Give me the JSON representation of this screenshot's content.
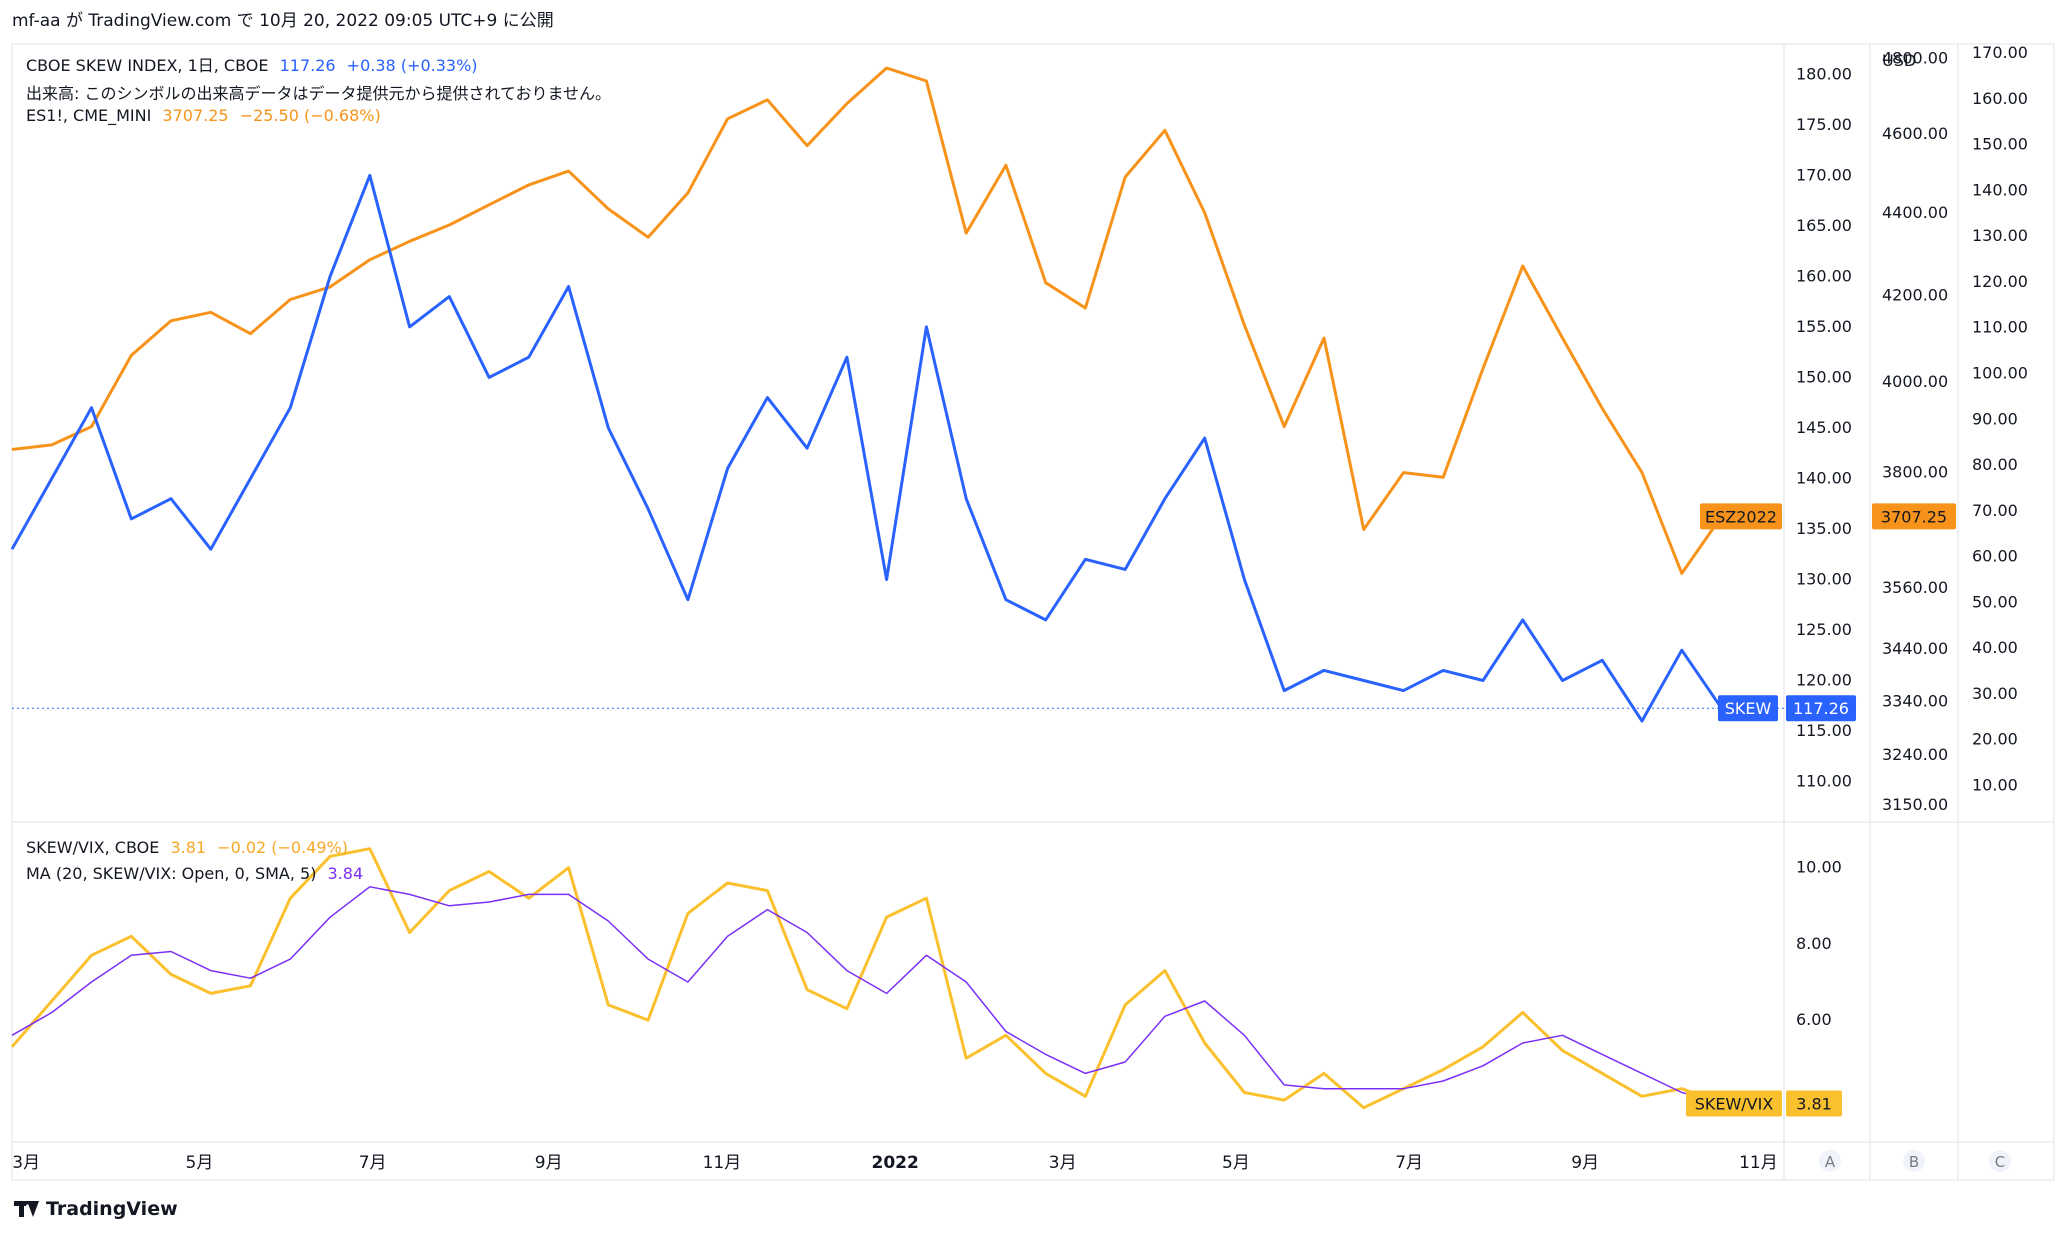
{
  "header": {
    "publish_text": "mf-aa が TradingView.com で 10月 20, 2022 09:05 UTC+9 に公開"
  },
  "legend": {
    "skew_name": "CBOE SKEW INDEX, 1日, CBOE",
    "skew_value": "117.26",
    "skew_change": "+0.38 (+0.33%)",
    "volume_note": "出来高: このシンボルの出来高データはデータ提供元から提供されておりません。",
    "es_name": "ES1!, CME_MINI",
    "es_value": "3707.25",
    "es_change": "−25.50 (−0.68%)",
    "ratio_name": "SKEW/VIX, CBOE",
    "ratio_value": "3.81",
    "ratio_change": "−0.02 (−0.49%)",
    "ma_name": "MA (20, SKEW/VIX: Open, 0, SMA, 5)",
    "ma_value": "3.84"
  },
  "colors": {
    "skew": "#2962ff",
    "es": "#f7931a",
    "ratio": "#fbc02d",
    "ma": "#7b2ff7",
    "grid": "#e0e3eb",
    "text": "#131722"
  },
  "brand": "TradingView",
  "axis_buttons": [
    "A",
    "B",
    "C"
  ],
  "chart_data": {
    "type": "line",
    "x_ticks": [
      "3月",
      "5月",
      "7月",
      "9月",
      "11月",
      "2022",
      "3月",
      "5月",
      "7月",
      "9月",
      "11月"
    ],
    "x_range": [
      "2021-02-24",
      "2022-11-10"
    ],
    "main_pane": {
      "skew_axis": {
        "ticks": [
          "180.00",
          "175.00",
          "170.00",
          "165.00",
          "160.00",
          "155.00",
          "150.00",
          "145.00",
          "140.00",
          "135.00",
          "130.00",
          "125.00",
          "120.00",
          "115.00",
          "110.00"
        ],
        "range": [
          106,
          183
        ]
      },
      "es_axis": {
        "unit": "USD",
        "ticks": [
          "4800.00",
          "4600.00",
          "4400.00",
          "4200.00",
          "4000.00",
          "3800.00",
          "3560.00",
          "3440.00",
          "3340.00",
          "3240.00",
          "3150.00"
        ],
        "range": [
          3120,
          4840
        ],
        "scale": "log"
      },
      "c_axis": {
        "ticks": [
          "170.00",
          "160.00",
          "150.00",
          "140.00",
          "130.00",
          "120.00",
          "110.00",
          "100.00",
          "90.00",
          "80.00",
          "70.00",
          "60.00",
          "50.00",
          "40.00",
          "30.00",
          "20.00",
          "10.00"
        ],
        "range": [
          2,
          172
        ]
      },
      "series": [
        {
          "name": "SKEW",
          "unit": "index",
          "last_label": "117.26",
          "points": [
            [
              "2021-02-24",
              133
            ],
            [
              "2021-03-10",
              140
            ],
            [
              "2021-03-24",
              147
            ],
            [
              "2021-04-07",
              136
            ],
            [
              "2021-04-21",
              138
            ],
            [
              "2021-05-05",
              133
            ],
            [
              "2021-05-19",
              140
            ],
            [
              "2021-06-02",
              147
            ],
            [
              "2021-06-16",
              160
            ],
            [
              "2021-06-30",
              170
            ],
            [
              "2021-07-14",
              155
            ],
            [
              "2021-07-28",
              158
            ],
            [
              "2021-08-11",
              150
            ],
            [
              "2021-08-25",
              152
            ],
            [
              "2021-09-08",
              159
            ],
            [
              "2021-09-22",
              145
            ],
            [
              "2021-10-06",
              137
            ],
            [
              "2021-10-20",
              128
            ],
            [
              "2021-11-03",
              141
            ],
            [
              "2021-11-17",
              148
            ],
            [
              "2021-12-01",
              143
            ],
            [
              "2021-12-15",
              152
            ],
            [
              "2021-12-29",
              130
            ],
            [
              "2022-01-12",
              155
            ],
            [
              "2022-01-26",
              138
            ],
            [
              "2022-02-09",
              128
            ],
            [
              "2022-02-23",
              126
            ],
            [
              "2022-03-09",
              132
            ],
            [
              "2022-03-23",
              131
            ],
            [
              "2022-04-06",
              138
            ],
            [
              "2022-04-20",
              144
            ],
            [
              "2022-05-04",
              130
            ],
            [
              "2022-05-18",
              119
            ],
            [
              "2022-06-01",
              121
            ],
            [
              "2022-06-15",
              120
            ],
            [
              "2022-06-29",
              119
            ],
            [
              "2022-07-13",
              121
            ],
            [
              "2022-07-27",
              120
            ],
            [
              "2022-08-10",
              126
            ],
            [
              "2022-08-24",
              120
            ],
            [
              "2022-09-07",
              122
            ],
            [
              "2022-09-21",
              116
            ],
            [
              "2022-10-05",
              123
            ],
            [
              "2022-10-19",
              117.26
            ]
          ]
        },
        {
          "name": "ESZ2022",
          "unit": "USD",
          "last_label": "3707.25",
          "points": [
            [
              "2021-02-24",
              3850
            ],
            [
              "2021-03-10",
              3860
            ],
            [
              "2021-03-24",
              3900
            ],
            [
              "2021-04-07",
              4060
            ],
            [
              "2021-04-21",
              4140
            ],
            [
              "2021-05-05",
              4160
            ],
            [
              "2021-05-19",
              4110
            ],
            [
              "2021-06-02",
              4190
            ],
            [
              "2021-06-16",
              4220
            ],
            [
              "2021-06-30",
              4285
            ],
            [
              "2021-07-14",
              4330
            ],
            [
              "2021-07-28",
              4370
            ],
            [
              "2021-08-11",
              4420
            ],
            [
              "2021-08-25",
              4470
            ],
            [
              "2021-09-08",
              4505
            ],
            [
              "2021-09-22",
              4410
            ],
            [
              "2021-10-06",
              4340
            ],
            [
              "2021-10-20",
              4450
            ],
            [
              "2021-11-03",
              4640
            ],
            [
              "2021-11-17",
              4690
            ],
            [
              "2021-12-01",
              4570
            ],
            [
              "2021-12-15",
              4680
            ],
            [
              "2021-12-29",
              4775
            ],
            [
              "2022-01-12",
              4740
            ],
            [
              "2022-01-26",
              4350
            ],
            [
              "2022-02-09",
              4520
            ],
            [
              "2022-02-23",
              4230
            ],
            [
              "2022-03-09",
              4170
            ],
            [
              "2022-03-23",
              4490
            ],
            [
              "2022-04-06",
              4610
            ],
            [
              "2022-04-20",
              4400
            ],
            [
              "2022-05-04",
              4130
            ],
            [
              "2022-05-18",
              3900
            ],
            [
              "2022-06-01",
              4100
            ],
            [
              "2022-06-15",
              3680
            ],
            [
              "2022-06-29",
              3800
            ],
            [
              "2022-07-13",
              3790
            ],
            [
              "2022-07-27",
              4030
            ],
            [
              "2022-08-10",
              4270
            ],
            [
              "2022-08-24",
              4100
            ],
            [
              "2022-09-07",
              3940
            ],
            [
              "2022-09-21",
              3800
            ],
            [
              "2022-10-05",
              3590
            ],
            [
              "2022-10-19",
              3707.25
            ]
          ]
        }
      ]
    },
    "lower_pane": {
      "axis": {
        "ticks": [
          "10.00",
          "8.00",
          "6.00"
        ],
        "range": [
          2.8,
          11.2
        ]
      },
      "series": [
        {
          "name": "SKEW/VIX",
          "last_label": "3.81",
          "points": [
            [
              "2021-02-24",
              5.3
            ],
            [
              "2021-03-10",
              6.5
            ],
            [
              "2021-03-24",
              7.7
            ],
            [
              "2021-04-07",
              8.2
            ],
            [
              "2021-04-21",
              7.2
            ],
            [
              "2021-05-05",
              6.7
            ],
            [
              "2021-05-19",
              6.9
            ],
            [
              "2021-06-02",
              9.2
            ],
            [
              "2021-06-16",
              10.3
            ],
            [
              "2021-06-30",
              10.5
            ],
            [
              "2021-07-14",
              8.3
            ],
            [
              "2021-07-28",
              9.4
            ],
            [
              "2021-08-11",
              9.9
            ],
            [
              "2021-08-25",
              9.2
            ],
            [
              "2021-09-08",
              10.0
            ],
            [
              "2021-09-22",
              6.4
            ],
            [
              "2021-10-06",
              6.0
            ],
            [
              "2021-10-20",
              8.8
            ],
            [
              "2021-11-03",
              9.6
            ],
            [
              "2021-11-17",
              9.4
            ],
            [
              "2021-12-01",
              6.8
            ],
            [
              "2021-12-15",
              6.3
            ],
            [
              "2021-12-29",
              8.7
            ],
            [
              "2022-01-12",
              9.2
            ],
            [
              "2022-01-26",
              5.0
            ],
            [
              "2022-02-09",
              5.6
            ],
            [
              "2022-02-23",
              4.6
            ],
            [
              "2022-03-09",
              4.0
            ],
            [
              "2022-03-23",
              6.4
            ],
            [
              "2022-04-06",
              7.3
            ],
            [
              "2022-04-20",
              5.4
            ],
            [
              "2022-05-04",
              4.1
            ],
            [
              "2022-05-18",
              3.9
            ],
            [
              "2022-06-01",
              4.6
            ],
            [
              "2022-06-15",
              3.7
            ],
            [
              "2022-06-29",
              4.2
            ],
            [
              "2022-07-13",
              4.7
            ],
            [
              "2022-07-27",
              5.3
            ],
            [
              "2022-08-10",
              6.2
            ],
            [
              "2022-08-24",
              5.2
            ],
            [
              "2022-09-07",
              4.6
            ],
            [
              "2022-09-21",
              4.0
            ],
            [
              "2022-10-05",
              4.2
            ],
            [
              "2022-10-19",
              3.81
            ]
          ]
        },
        {
          "name": "MA",
          "last_label": "3.84",
          "points": [
            [
              "2021-02-24",
              5.6
            ],
            [
              "2021-03-10",
              6.2
            ],
            [
              "2021-03-24",
              7.0
            ],
            [
              "2021-04-07",
              7.7
            ],
            [
              "2021-04-21",
              7.8
            ],
            [
              "2021-05-05",
              7.3
            ],
            [
              "2021-05-19",
              7.1
            ],
            [
              "2021-06-02",
              7.6
            ],
            [
              "2021-06-16",
              8.7
            ],
            [
              "2021-06-30",
              9.5
            ],
            [
              "2021-07-14",
              9.3
            ],
            [
              "2021-07-28",
              9.0
            ],
            [
              "2021-08-11",
              9.1
            ],
            [
              "2021-08-25",
              9.3
            ],
            [
              "2021-09-08",
              9.3
            ],
            [
              "2021-09-22",
              8.6
            ],
            [
              "2021-10-06",
              7.6
            ],
            [
              "2021-10-20",
              7.0
            ],
            [
              "2021-11-03",
              8.2
            ],
            [
              "2021-11-17",
              8.9
            ],
            [
              "2021-12-01",
              8.3
            ],
            [
              "2021-12-15",
              7.3
            ],
            [
              "2021-12-29",
              6.7
            ],
            [
              "2022-01-12",
              7.7
            ],
            [
              "2022-01-26",
              7.0
            ],
            [
              "2022-02-09",
              5.7
            ],
            [
              "2022-02-23",
              5.1
            ],
            [
              "2022-03-09",
              4.6
            ],
            [
              "2022-03-23",
              4.9
            ],
            [
              "2022-04-06",
              6.1
            ],
            [
              "2022-04-20",
              6.5
            ],
            [
              "2022-05-04",
              5.6
            ],
            [
              "2022-05-18",
              4.3
            ],
            [
              "2022-06-01",
              4.2
            ],
            [
              "2022-06-15",
              4.2
            ],
            [
              "2022-06-29",
              4.2
            ],
            [
              "2022-07-13",
              4.4
            ],
            [
              "2022-07-27",
              4.8
            ],
            [
              "2022-08-10",
              5.4
            ],
            [
              "2022-08-24",
              5.6
            ],
            [
              "2022-09-07",
              5.1
            ],
            [
              "2022-09-21",
              4.6
            ],
            [
              "2022-10-05",
              4.1
            ],
            [
              "2022-10-19",
              3.84
            ]
          ]
        }
      ]
    }
  }
}
